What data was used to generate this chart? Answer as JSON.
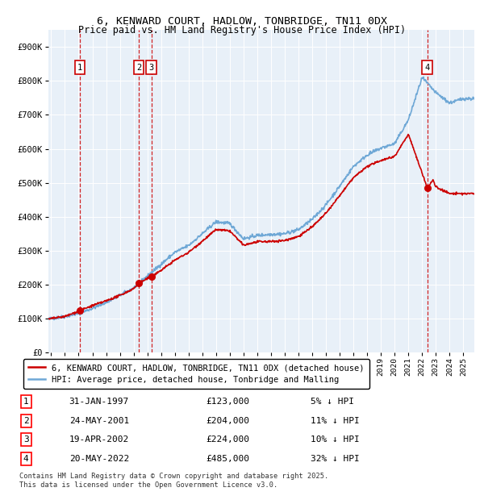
{
  "title1": "6, KENWARD COURT, HADLOW, TONBRIDGE, TN11 0DX",
  "title2": "Price paid vs. HM Land Registry's House Price Index (HPI)",
  "plot_bg": "#e8f0f8",
  "ylim": [
    0,
    950000
  ],
  "yticks": [
    0,
    100000,
    200000,
    300000,
    400000,
    500000,
    600000,
    700000,
    800000,
    900000
  ],
  "ytick_labels": [
    "£0",
    "£100K",
    "£200K",
    "£300K",
    "£400K",
    "£500K",
    "£600K",
    "£700K",
    "£800K",
    "£900K"
  ],
  "xlim_start": 1994.8,
  "xlim_end": 2025.8,
  "xticks": [
    1995,
    1996,
    1997,
    1998,
    1999,
    2000,
    2001,
    2002,
    2003,
    2004,
    2005,
    2006,
    2007,
    2008,
    2009,
    2010,
    2011,
    2012,
    2013,
    2014,
    2015,
    2016,
    2017,
    2018,
    2019,
    2020,
    2021,
    2022,
    2023,
    2024,
    2025
  ],
  "sale_dates": [
    1997.08,
    2001.39,
    2002.3,
    2022.38
  ],
  "sale_prices": [
    123000,
    204000,
    224000,
    485000
  ],
  "sale_labels": [
    "1",
    "2",
    "3",
    "4"
  ],
  "hpi_color": "#6fa8d6",
  "price_color": "#cc0000",
  "dashed_color": "#cc0000",
  "legend_line1": "6, KENWARD COURT, HADLOW, TONBRIDGE, TN11 0DX (detached house)",
  "legend_line2": "HPI: Average price, detached house, Tonbridge and Malling",
  "table_data": [
    [
      "1",
      "31-JAN-1997",
      "£123,000",
      "5% ↓ HPI"
    ],
    [
      "2",
      "24-MAY-2001",
      "£204,000",
      "11% ↓ HPI"
    ],
    [
      "3",
      "19-APR-2002",
      "£224,000",
      "10% ↓ HPI"
    ],
    [
      "4",
      "20-MAY-2022",
      "£485,000",
      "32% ↓ HPI"
    ]
  ],
  "footer": "Contains HM Land Registry data © Crown copyright and database right 2025.\nThis data is licensed under the Open Government Licence v3.0."
}
